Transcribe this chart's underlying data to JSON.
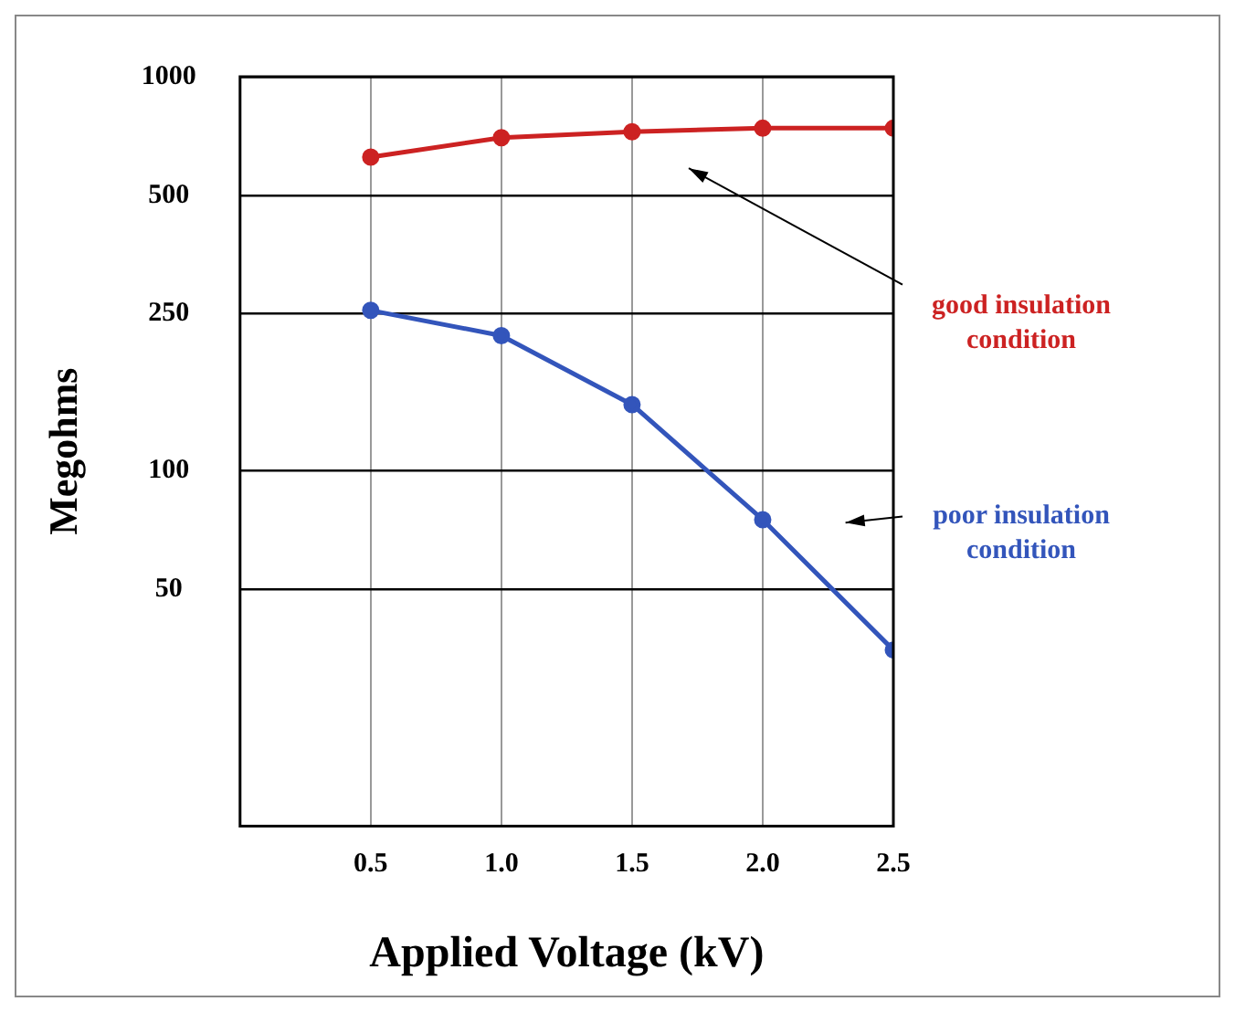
{
  "chart_data": {
    "type": "line",
    "xlabel": "Applied Voltage (kV)",
    "ylabel": "Megohms",
    "x": [
      0.5,
      1.0,
      1.5,
      2.0,
      2.5
    ],
    "series": [
      {
        "color": "#cc2222",
        "values": [
          625,
          700,
          725,
          740,
          740
        ]
      },
      {
        "color": "#3355bb",
        "values": [
          255,
          220,
          147,
          75,
          35
        ]
      }
    ],
    "xlim": [
      0,
      2.5
    ],
    "xticks": [
      {
        "value": 0.5,
        "label": "0.5"
      },
      {
        "value": 1.0,
        "label": "1.0"
      },
      {
        "value": 1.5,
        "label": "1.5"
      },
      {
        "value": 2.0,
        "label": "2.0"
      },
      {
        "value": 2.5,
        "label": "2.5"
      }
    ],
    "ylim": [
      12.5,
      1000
    ],
    "yticks": [
      50,
      100,
      250,
      500,
      1000
    ],
    "annotations": [
      "good insulation condition",
      "poor insulation condition"
    ],
    "log": "y",
    "grid": true,
    "legend": false,
    "marker": "circle",
    "line_style": "solid"
  }
}
